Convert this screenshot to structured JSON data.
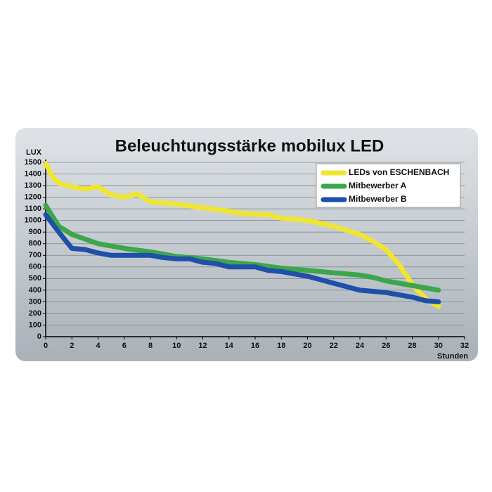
{
  "chart_data": {
    "type": "line",
    "title": "Beleuchtungsstärke mobilux LED",
    "y_label": "LUX",
    "x_label": "Stunden",
    "xlim": [
      0,
      32
    ],
    "xticks": [
      0,
      2,
      4,
      6,
      8,
      10,
      12,
      14,
      16,
      18,
      20,
      22,
      24,
      26,
      28,
      30,
      32
    ],
    "ylim": [
      0,
      1500
    ],
    "yticks": [
      0,
      100,
      200,
      300,
      400,
      500,
      600,
      700,
      800,
      900,
      1000,
      1100,
      1200,
      1300,
      1400,
      1500
    ],
    "grid": true,
    "legend": "upper right",
    "series": [
      {
        "name": "LEDs von ESCHENBACH",
        "color": "#f0e531",
        "x": [
          0,
          0.5,
          1,
          2,
          3,
          4,
          5,
          6,
          7,
          8,
          10,
          12,
          14,
          15,
          17,
          18,
          20,
          22,
          24,
          25,
          26,
          27,
          28,
          29,
          30
        ],
        "values": [
          1490,
          1380,
          1320,
          1290,
          1270,
          1290,
          1220,
          1200,
          1230,
          1160,
          1140,
          1110,
          1080,
          1060,
          1050,
          1020,
          1000,
          950,
          880,
          820,
          750,
          620,
          450,
          330,
          260
        ]
      },
      {
        "name": "Mitbewerber A",
        "color": "#3ca64b",
        "x": [
          0,
          1,
          2,
          3,
          4,
          6,
          8,
          10,
          12,
          14,
          16,
          18,
          20,
          22,
          24,
          25,
          26,
          28,
          30
        ],
        "values": [
          1130,
          950,
          880,
          840,
          800,
          760,
          730,
          690,
          670,
          640,
          620,
          590,
          570,
          550,
          530,
          510,
          480,
          440,
          400
        ]
      },
      {
        "name": "Mitbewerber B",
        "color": "#1f4fa8",
        "x": [
          0,
          1,
          2,
          3,
          4,
          5,
          6,
          8,
          9,
          10,
          11,
          12,
          13,
          14,
          16,
          17,
          18,
          20,
          22,
          24,
          26,
          28,
          29,
          30
        ],
        "values": [
          1050,
          900,
          760,
          750,
          720,
          700,
          700,
          700,
          680,
          670,
          670,
          640,
          630,
          600,
          600,
          570,
          560,
          520,
          460,
          400,
          380,
          340,
          310,
          300
        ]
      }
    ]
  }
}
